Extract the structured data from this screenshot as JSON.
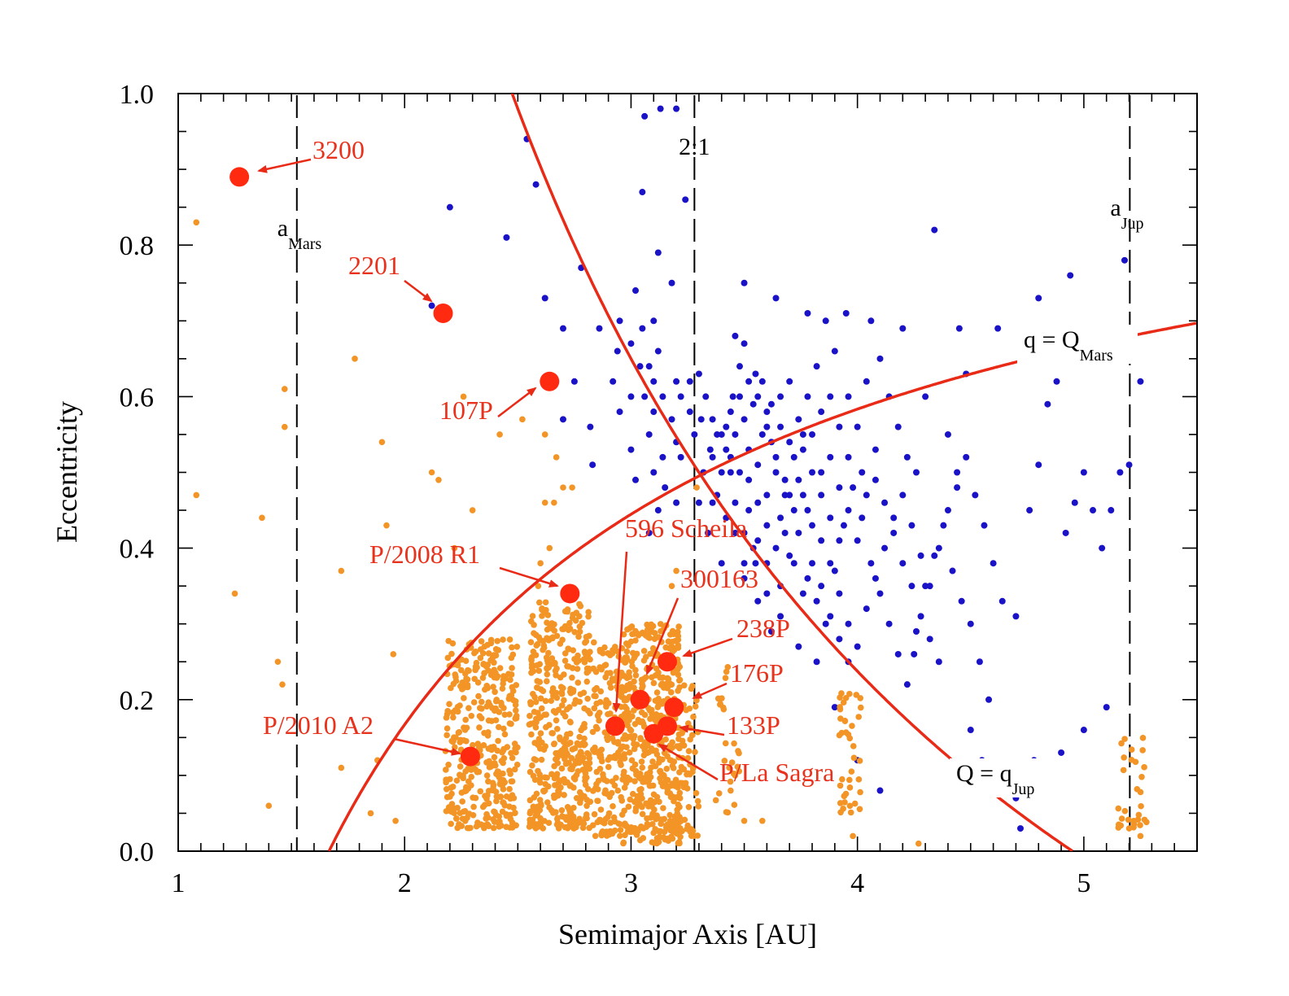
{
  "chart_data": {
    "type": "scatter",
    "xlabel": "Semimajor Axis [AU]",
    "ylabel": "Eccentricity",
    "xlim": [
      1,
      5.5
    ],
    "ylim": [
      0,
      1
    ],
    "x_ticks": [
      "1",
      "2",
      "3",
      "4",
      "5"
    ],
    "y_ticks": [
      "0.0",
      "0.2",
      "0.4",
      "0.6",
      "0.8",
      "1.0"
    ],
    "colors": {
      "main_belt": "#f39426",
      "jfc": "#1a12c7",
      "active": "#ff2a10",
      "curves": "#e82a16",
      "annotation_text": "#e8321c",
      "reference": "#000000"
    },
    "vertical_lines": [
      {
        "x": 1.524,
        "label": "a",
        "sub": "Mars"
      },
      {
        "x": 3.28,
        "label": "2:1",
        "sub": ""
      },
      {
        "x": 5.203,
        "label": "a",
        "sub": "Jup"
      }
    ],
    "curves": [
      {
        "label": "q = Q",
        "sub": "Mars",
        "constant": 1.666,
        "form": "e = 1 - q / a"
      },
      {
        "label": "Q = q",
        "sub": "Jup",
        "constant": 4.95,
        "form": "e = Q / a - 1"
      }
    ],
    "active_objects": [
      {
        "name": "3200",
        "a": 1.27,
        "e": 0.89
      },
      {
        "name": "2201",
        "a": 2.17,
        "e": 0.71
      },
      {
        "name": "107P",
        "a": 2.64,
        "e": 0.62
      },
      {
        "name": "P/2008 R1",
        "a": 2.73,
        "e": 0.34
      },
      {
        "name": "596 Scheila",
        "a": 2.93,
        "e": 0.165
      },
      {
        "name": "300163",
        "a": 3.04,
        "e": 0.2
      },
      {
        "name": "238P",
        "a": 3.16,
        "e": 0.25
      },
      {
        "name": "176P",
        "a": 3.19,
        "e": 0.19
      },
      {
        "name": "133P",
        "a": 3.16,
        "e": 0.165
      },
      {
        "name": "P/La Sagra",
        "a": 3.1,
        "e": 0.155
      },
      {
        "name": "P/2010 A2",
        "a": 2.29,
        "e": 0.125
      }
    ],
    "series": [
      {
        "values_note": "",
        "points": [
          [
            2.12,
            0.72
          ],
          [
            2.54,
            0.94
          ],
          [
            2.58,
            0.88
          ],
          [
            2.2,
            0.85
          ],
          [
            2.45,
            0.81
          ],
          [
            2.78,
            0.77
          ],
          [
            2.62,
            0.73
          ],
          [
            2.7,
            0.69
          ],
          [
            2.75,
            0.62
          ],
          [
            2.7,
            0.57
          ],
          [
            2.82,
            0.56
          ],
          [
            2.83,
            0.51
          ],
          [
            2.95,
            0.58
          ],
          [
            3.0,
            0.67
          ],
          [
            3.02,
            0.74
          ],
          [
            3.05,
            0.87
          ],
          [
            3.06,
            0.97
          ],
          [
            3.13,
            0.98
          ],
          [
            3.2,
            0.98
          ],
          [
            3.24,
            0.86
          ],
          [
            3.12,
            0.79
          ],
          [
            3.18,
            0.75
          ],
          [
            3.26,
            0.58
          ],
          [
            3.33,
            0.6
          ],
          [
            3.31,
            0.57
          ],
          [
            3.35,
            0.53
          ],
          [
            3.42,
            0.56
          ],
          [
            3.45,
            0.6
          ],
          [
            3.48,
            0.64
          ],
          [
            3.5,
            0.67
          ],
          [
            3.55,
            0.63
          ],
          [
            3.6,
            0.58
          ],
          [
            3.62,
            0.54
          ],
          [
            3.64,
            0.5
          ],
          [
            3.68,
            0.47
          ],
          [
            3.72,
            0.52
          ],
          [
            3.76,
            0.55
          ],
          [
            3.8,
            0.5
          ],
          [
            3.84,
            0.47
          ],
          [
            3.88,
            0.44
          ],
          [
            3.92,
            0.41
          ],
          [
            3.56,
            0.46
          ],
          [
            3.6,
            0.43
          ],
          [
            3.54,
            0.4
          ],
          [
            3.5,
            0.38
          ],
          [
            3.46,
            0.42
          ],
          [
            3.42,
            0.44
          ],
          [
            3.38,
            0.47
          ],
          [
            3.4,
            0.5
          ],
          [
            3.44,
            0.52
          ],
          [
            3.48,
            0.5
          ],
          [
            3.52,
            0.53
          ],
          [
            3.58,
            0.55
          ],
          [
            3.66,
            0.6
          ],
          [
            3.7,
            0.62
          ],
          [
            3.74,
            0.57
          ],
          [
            3.78,
            0.6
          ],
          [
            3.82,
            0.64
          ],
          [
            3.86,
            0.7
          ],
          [
            3.9,
            0.66
          ],
          [
            3.96,
            0.6
          ],
          [
            4.0,
            0.56
          ],
          [
            4.04,
            0.62
          ],
          [
            4.06,
            0.7
          ],
          [
            4.1,
            0.65
          ],
          [
            4.14,
            0.6
          ],
          [
            4.18,
            0.56
          ],
          [
            4.22,
            0.52
          ],
          [
            4.26,
            0.5
          ],
          [
            4.3,
            0.6
          ],
          [
            4.34,
            0.82
          ],
          [
            4.4,
            0.55
          ],
          [
            4.44,
            0.5
          ],
          [
            4.48,
            0.63
          ],
          [
            4.52,
            0.47
          ],
          [
            4.56,
            0.43
          ],
          [
            4.6,
            0.38
          ],
          [
            4.64,
            0.33
          ],
          [
            4.7,
            0.31
          ],
          [
            4.76,
            0.45
          ],
          [
            4.8,
            0.51
          ],
          [
            4.84,
            0.59
          ],
          [
            4.88,
            0.62
          ],
          [
            4.92,
            0.42
          ],
          [
            4.96,
            0.46
          ],
          [
            5.0,
            0.5
          ],
          [
            5.04,
            0.45
          ],
          [
            5.08,
            0.4
          ],
          [
            5.12,
            0.45
          ],
          [
            5.16,
            0.5
          ],
          [
            5.2,
            0.51
          ],
          [
            5.25,
            0.62
          ],
          [
            5.18,
            0.78
          ],
          [
            4.94,
            0.76
          ],
          [
            4.8,
            0.73
          ],
          [
            4.62,
            0.69
          ],
          [
            4.45,
            0.69
          ],
          [
            4.2,
            0.69
          ],
          [
            3.95,
            0.71
          ],
          [
            3.78,
            0.71
          ],
          [
            3.64,
            0.73
          ],
          [
            3.5,
            0.75
          ],
          [
            3.46,
            0.68
          ],
          [
            3.3,
            0.63
          ],
          [
            3.2,
            0.62
          ],
          [
            3.1,
            0.62
          ],
          [
            3.0,
            0.6
          ],
          [
            2.94,
            0.66
          ],
          [
            2.86,
            0.69
          ],
          [
            2.92,
            0.62
          ],
          [
            3.04,
            0.64
          ],
          [
            3.08,
            0.55
          ],
          [
            3.0,
            0.53
          ],
          [
            3.02,
            0.49
          ],
          [
            3.14,
            0.52
          ],
          [
            3.2,
            0.54
          ],
          [
            3.28,
            0.55
          ],
          [
            3.36,
            0.46
          ],
          [
            3.34,
            0.42
          ],
          [
            3.4,
            0.38
          ],
          [
            3.5,
            0.36
          ],
          [
            3.56,
            0.33
          ],
          [
            3.62,
            0.29
          ],
          [
            3.66,
            0.35
          ],
          [
            3.7,
            0.39
          ],
          [
            3.74,
            0.42
          ],
          [
            3.78,
            0.36
          ],
          [
            3.82,
            0.33
          ],
          [
            3.86,
            0.3
          ],
          [
            3.9,
            0.37
          ],
          [
            3.94,
            0.43
          ],
          [
            3.98,
            0.48
          ],
          [
            4.02,
            0.44
          ],
          [
            4.06,
            0.38
          ],
          [
            4.1,
            0.34
          ],
          [
            4.14,
            0.3
          ],
          [
            4.18,
            0.26
          ],
          [
            4.22,
            0.22
          ],
          [
            4.26,
            0.29
          ],
          [
            4.3,
            0.35
          ],
          [
            4.34,
            0.39
          ],
          [
            4.38,
            0.43
          ],
          [
            4.42,
            0.37
          ],
          [
            4.46,
            0.33
          ],
          [
            4.5,
            0.3
          ],
          [
            4.54,
            0.25
          ],
          [
            4.58,
            0.2
          ],
          [
            4.5,
            0.16
          ],
          [
            4.55,
            0.12
          ],
          [
            4.6,
            0.09
          ],
          [
            4.7,
            0.07
          ],
          [
            4.8,
            0.1
          ],
          [
            4.9,
            0.13
          ],
          [
            5.0,
            0.16
          ],
          [
            5.1,
            0.19
          ],
          [
            4.78,
            0.12
          ],
          [
            4.72,
            0.03
          ],
          [
            4.25,
            0.26
          ],
          [
            4.1,
            0.08
          ],
          [
            4.0,
            0.12
          ],
          [
            3.9,
            0.19
          ],
          [
            3.82,
            0.25
          ],
          [
            3.74,
            0.27
          ],
          [
            3.66,
            0.31
          ],
          [
            3.6,
            0.34
          ],
          [
            3.55,
            0.38
          ],
          [
            3.5,
            0.42
          ],
          [
            3.46,
            0.46
          ],
          [
            3.52,
            0.49
          ],
          [
            3.56,
            0.51
          ],
          [
            3.6,
            0.47
          ],
          [
            3.66,
            0.44
          ],
          [
            3.7,
            0.47
          ],
          [
            3.74,
            0.49
          ],
          [
            3.78,
            0.45
          ],
          [
            3.84,
            0.41
          ],
          [
            3.88,
            0.38
          ],
          [
            3.92,
            0.34
          ],
          [
            3.96,
            0.3
          ],
          [
            4.0,
            0.27
          ],
          [
            4.04,
            0.32
          ],
          [
            4.08,
            0.36
          ],
          [
            4.12,
            0.4
          ],
          [
            4.16,
            0.44
          ],
          [
            4.2,
            0.47
          ],
          [
            4.24,
            0.43
          ],
          [
            4.28,
            0.39
          ],
          [
            4.32,
            0.35
          ],
          [
            4.36,
            0.4
          ],
          [
            4.4,
            0.45
          ],
          [
            4.44,
            0.48
          ],
          [
            4.48,
            0.52
          ],
          [
            3.44,
            0.5
          ],
          [
            3.42,
            0.53
          ],
          [
            3.38,
            0.55
          ],
          [
            3.36,
            0.57
          ],
          [
            3.32,
            0.5
          ],
          [
            3.3,
            0.46
          ],
          [
            3.46,
            0.55
          ],
          [
            3.5,
            0.57
          ],
          [
            3.54,
            0.59
          ],
          [
            3.58,
            0.62
          ],
          [
            3.62,
            0.59
          ],
          [
            3.66,
            0.56
          ],
          [
            3.7,
            0.54
          ],
          [
            3.76,
            0.53
          ],
          [
            3.8,
            0.55
          ],
          [
            3.84,
            0.58
          ],
          [
            3.88,
            0.6
          ],
          [
            3.92,
            0.56
          ],
          [
            3.96,
            0.52
          ],
          [
            4.02,
            0.5
          ],
          [
            4.08,
            0.53
          ],
          [
            3.52,
            0.45
          ],
          [
            3.56,
            0.41
          ],
          [
            3.6,
            0.38
          ],
          [
            3.64,
            0.4
          ],
          [
            3.68,
            0.42
          ],
          [
            3.72,
            0.38
          ],
          [
            3.76,
            0.34
          ],
          [
            3.8,
            0.38
          ],
          [
            3.84,
            0.35
          ],
          [
            3.88,
            0.31
          ],
          [
            3.92,
            0.28
          ],
          [
            3.96,
            0.25
          ],
          [
            3.36,
            0.52
          ],
          [
            3.4,
            0.55
          ],
          [
            3.44,
            0.58
          ],
          [
            3.48,
            0.6
          ],
          [
            3.52,
            0.62
          ],
          [
            3.56,
            0.6
          ],
          [
            3.6,
            0.56
          ],
          [
            3.64,
            0.52
          ],
          [
            3.68,
            0.49
          ],
          [
            3.72,
            0.45
          ],
          [
            3.76,
            0.47
          ],
          [
            3.8,
            0.43
          ],
          [
            3.84,
            0.5
          ],
          [
            3.88,
            0.52
          ],
          [
            3.92,
            0.48
          ],
          [
            3.96,
            0.45
          ],
          [
            4.0,
            0.41
          ],
          [
            4.04,
            0.47
          ],
          [
            4.08,
            0.49
          ],
          [
            4.12,
            0.46
          ],
          [
            4.16,
            0.42
          ],
          [
            4.2,
            0.38
          ],
          [
            4.24,
            0.35
          ],
          [
            4.28,
            0.31
          ],
          [
            4.32,
            0.28
          ],
          [
            4.36,
            0.25
          ],
          [
            2.95,
            0.7
          ],
          [
            3.05,
            0.69
          ],
          [
            3.1,
            0.7
          ],
          [
            3.12,
            0.66
          ],
          [
            3.08,
            0.64
          ],
          [
            3.06,
            0.6
          ],
          [
            3.1,
            0.58
          ],
          [
            3.14,
            0.6
          ],
          [
            3.18,
            0.57
          ],
          [
            3.22,
            0.6
          ],
          [
            3.26,
            0.62
          ],
          [
            3.22,
            0.52
          ],
          [
            3.1,
            0.5
          ],
          [
            3.15,
            0.48
          ],
          [
            3.12,
            0.45
          ],
          [
            3.08,
            0.42
          ],
          [
            3.2,
            0.46
          ]
        ]
      }
    ]
  }
}
